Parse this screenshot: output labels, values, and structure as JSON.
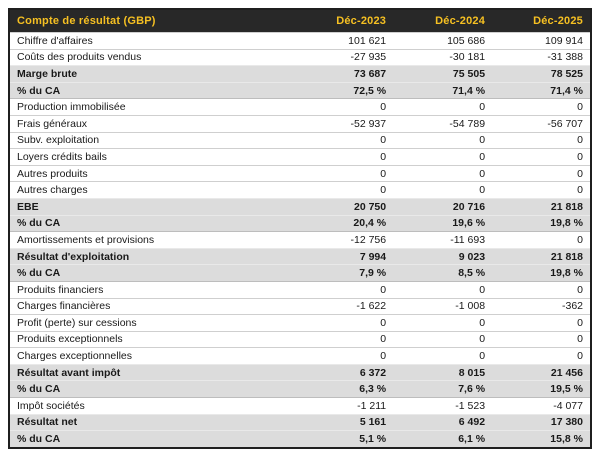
{
  "colors": {
    "header_bg": "#282828",
    "header_text": "#F6C022",
    "emphasis_row_bg": "#DCDCDC",
    "outer_border": "#1F1F1F"
  },
  "chart_data": {
    "type": "table",
    "title": "Compte de résultat (GBP)",
    "currency": "GBP",
    "columns": [
      "Déc-2023",
      "Déc-2024",
      "Déc-2025"
    ],
    "rows": [
      {
        "label": "Chiffre d'affaires",
        "values": [
          "101 621",
          "105 686",
          "109 914"
        ],
        "emphasis": false
      },
      {
        "label": "Coûts des produits vendus",
        "values": [
          "-27 935",
          "-30 181",
          "-31 388"
        ],
        "emphasis": false
      },
      {
        "label": "Marge brute",
        "values": [
          "73 687",
          "75 505",
          "78 525"
        ],
        "emphasis": true
      },
      {
        "label": "% du CA",
        "values": [
          "72,5 %",
          "71,4 %",
          "71,4 %"
        ],
        "emphasis": true
      },
      {
        "label": "Production immobilisée",
        "values": [
          "0",
          "0",
          "0"
        ],
        "emphasis": false
      },
      {
        "label": "Frais généraux",
        "values": [
          "-52 937",
          "-54 789",
          "-56 707"
        ],
        "emphasis": false
      },
      {
        "label": "Subv. exploitation",
        "values": [
          "0",
          "0",
          "0"
        ],
        "emphasis": false
      },
      {
        "label": "Loyers crédits bails",
        "values": [
          "0",
          "0",
          "0"
        ],
        "emphasis": false
      },
      {
        "label": "Autres produits",
        "values": [
          "0",
          "0",
          "0"
        ],
        "emphasis": false
      },
      {
        "label": "Autres charges",
        "values": [
          "0",
          "0",
          "0"
        ],
        "emphasis": false
      },
      {
        "label": "EBE",
        "values": [
          "20 750",
          "20 716",
          "21 818"
        ],
        "emphasis": true
      },
      {
        "label": "% du CA",
        "values": [
          "20,4 %",
          "19,6 %",
          "19,8 %"
        ],
        "emphasis": true
      },
      {
        "label": "Amortissements et provisions",
        "values": [
          "-12 756",
          "-11 693",
          "0"
        ],
        "emphasis": false
      },
      {
        "label": "Résultat d'exploitation",
        "values": [
          "7 994",
          "9 023",
          "21 818"
        ],
        "emphasis": true
      },
      {
        "label": "% du CA",
        "values": [
          "7,9 %",
          "8,5 %",
          "19,8 %"
        ],
        "emphasis": true
      },
      {
        "label": "Produits financiers",
        "values": [
          "0",
          "0",
          "0"
        ],
        "emphasis": false
      },
      {
        "label": "Charges financières",
        "values": [
          "-1 622",
          "-1 008",
          "-362"
        ],
        "emphasis": false
      },
      {
        "label": "Profit (perte) sur cessions",
        "values": [
          "0",
          "0",
          "0"
        ],
        "emphasis": false
      },
      {
        "label": "Produits exceptionnels",
        "values": [
          "0",
          "0",
          "0"
        ],
        "emphasis": false
      },
      {
        "label": "Charges exceptionnelles",
        "values": [
          "0",
          "0",
          "0"
        ],
        "emphasis": false
      },
      {
        "label": "Résultat avant impôt",
        "values": [
          "6 372",
          "8 015",
          "21 456"
        ],
        "emphasis": true
      },
      {
        "label": "% du CA",
        "values": [
          "6,3 %",
          "7,6 %",
          "19,5 %"
        ],
        "emphasis": true
      },
      {
        "label": "Impôt sociétés",
        "values": [
          "-1 211",
          "-1 523",
          "-4 077"
        ],
        "emphasis": false
      },
      {
        "label": "Résultat net",
        "values": [
          "5 161",
          "6 492",
          "17 380"
        ],
        "emphasis": true
      },
      {
        "label": "% du CA",
        "values": [
          "5,1 %",
          "6,1 %",
          "15,8 %"
        ],
        "emphasis": true
      }
    ]
  }
}
